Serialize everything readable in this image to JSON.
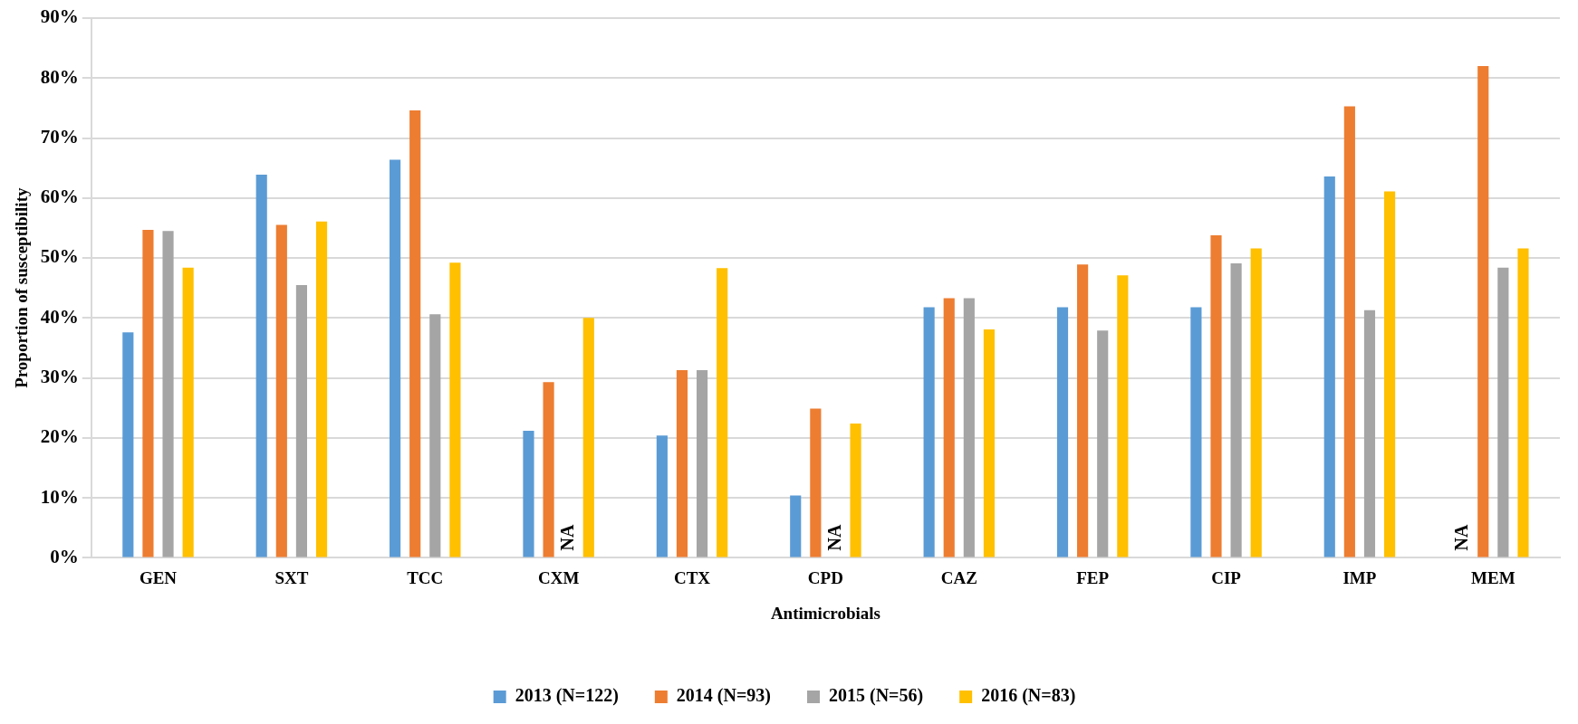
{
  "chart_data": {
    "type": "bar",
    "xlabel": "Antimicrobials",
    "ylabel": "Proportion of susceptibility",
    "categories": [
      "GEN",
      "SXT",
      "TCC",
      "CXM",
      "CTX",
      "CPD",
      "CAZ",
      "FEP",
      "CIP",
      "IMP",
      "MEM"
    ],
    "series": [
      {
        "name": "2013 (N=122)",
        "color": "#5b9bd5",
        "values": [
          37.6,
          63.9,
          66.4,
          21.2,
          20.4,
          10.4,
          41.8,
          41.8,
          41.8,
          63.6,
          null
        ]
      },
      {
        "name": "2014 (N=93)",
        "color": "#ed7d31",
        "values": [
          54.7,
          55.5,
          74.6,
          29.3,
          31.3,
          24.9,
          43.3,
          48.9,
          53.8,
          75.3,
          82.0
        ]
      },
      {
        "name": "2015 (N=56)",
        "color": "#a5a5a5",
        "values": [
          54.5,
          45.5,
          40.6,
          null,
          31.3,
          null,
          43.3,
          37.9,
          49.1,
          41.3,
          48.4
        ]
      },
      {
        "name": "2016 (N=83)",
        "color": "#ffc000",
        "values": [
          48.4,
          56.1,
          49.2,
          40.0,
          48.3,
          22.4,
          38.1,
          47.1,
          51.6,
          61.1,
          51.6
        ]
      }
    ],
    "annotations": [
      "NA",
      "NA",
      "NA"
    ],
    "ylim": [
      0,
      90
    ],
    "yticks": [
      {
        "value": 0,
        "label": "0%"
      },
      {
        "value": 10,
        "label": "10%"
      },
      {
        "value": 20,
        "label": "20%"
      },
      {
        "value": 30,
        "label": "30%"
      },
      {
        "value": 40,
        "label": "40%"
      },
      {
        "value": 50,
        "label": "50%"
      },
      {
        "value": 60,
        "label": "60%"
      },
      {
        "value": 70,
        "label": "70%"
      },
      {
        "value": 80,
        "label": "80%"
      },
      {
        "value": 90,
        "label": "90%"
      }
    ],
    "grid": "y",
    "legend": "bottom"
  }
}
